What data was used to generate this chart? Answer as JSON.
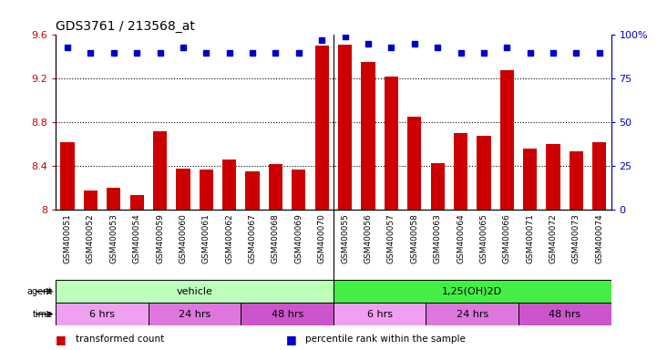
{
  "title": "GDS3761 / 213568_at",
  "samples": [
    "GSM400051",
    "GSM400052",
    "GSM400053",
    "GSM400054",
    "GSM400059",
    "GSM400060",
    "GSM400061",
    "GSM400062",
    "GSM400067",
    "GSM400068",
    "GSM400069",
    "GSM400070",
    "GSM400055",
    "GSM400056",
    "GSM400057",
    "GSM400058",
    "GSM400063",
    "GSM400064",
    "GSM400065",
    "GSM400066",
    "GSM400071",
    "GSM400072",
    "GSM400073",
    "GSM400074"
  ],
  "bar_values": [
    8.62,
    8.18,
    8.2,
    8.14,
    8.72,
    8.38,
    8.37,
    8.46,
    8.35,
    8.42,
    8.37,
    9.5,
    9.51,
    9.35,
    9.22,
    8.85,
    8.43,
    8.7,
    8.68,
    9.28,
    8.56,
    8.6,
    8.54,
    8.62
  ],
  "percentile_values": [
    93,
    90,
    90,
    90,
    90,
    93,
    90,
    90,
    90,
    90,
    90,
    97,
    99,
    95,
    93,
    95,
    93,
    90,
    90,
    93,
    90,
    90,
    90,
    90
  ],
  "bar_color": "#cc0000",
  "dot_color": "#0000cc",
  "ylim_left": [
    8.0,
    9.6
  ],
  "ylim_right": [
    0,
    100
  ],
  "yticks_left": [
    8.0,
    8.4,
    8.8,
    9.2,
    9.6
  ],
  "ytick_labels_left": [
    "8",
    "8.4",
    "8.8",
    "9.2",
    "9.6"
  ],
  "yticks_right": [
    0,
    25,
    50,
    75,
    100
  ],
  "ytick_labels_right": [
    "0",
    "25",
    "50",
    "75",
    "100%"
  ],
  "hlines": [
    8.4,
    8.8,
    9.2
  ],
  "agent_groups": [
    {
      "label": "vehicle",
      "start": 0,
      "end": 12,
      "color": "#bbffbb"
    },
    {
      "label": "1,25(OH)2D",
      "start": 12,
      "end": 24,
      "color": "#44ee44"
    }
  ],
  "time_groups": [
    {
      "label": "6 hrs",
      "start": 0,
      "end": 4,
      "color": "#f0a0f0"
    },
    {
      "label": "24 hrs",
      "start": 4,
      "end": 8,
      "color": "#dd77dd"
    },
    {
      "label": "48 hrs",
      "start": 8,
      "end": 12,
      "color": "#cc55cc"
    },
    {
      "label": "6 hrs",
      "start": 12,
      "end": 16,
      "color": "#f0a0f0"
    },
    {
      "label": "24 hrs",
      "start": 16,
      "end": 20,
      "color": "#dd77dd"
    },
    {
      "label": "48 hrs",
      "start": 20,
      "end": 24,
      "color": "#cc55cc"
    }
  ],
  "legend_items": [
    {
      "color": "#cc0000",
      "label": "transformed count"
    },
    {
      "color": "#0000cc",
      "label": "percentile rank within the sample"
    }
  ],
  "bg_color": "#ffffff"
}
